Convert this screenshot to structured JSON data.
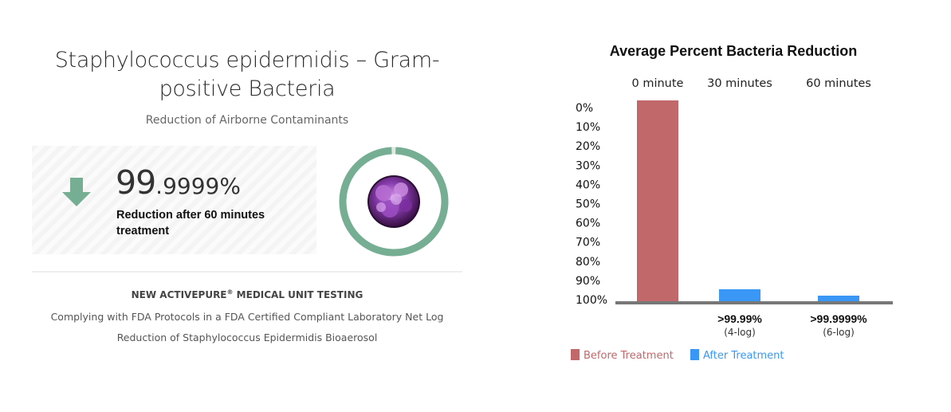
{
  "panel": {
    "title": "Staphylococcus epidermidis – Gram-positive Bacteria",
    "subtitle": "Reduction of Airborne Contaminants",
    "stat_main": "99",
    "stat_decimal": ".9999%",
    "stat_caption": "Reduction after 60 minutes treatment",
    "testing_title": "NEW ACTIVEPURE",
    "testing_title_sup": "®",
    "testing_title_suffix": " MEDICAL UNIT TESTING",
    "testing_desc": "Complying with FDA Protocols in a FDA Certified Compliant Laboratory Net Log Reduction of Staphylococcus Epidermidis Bioaerosol",
    "ring_fraction": 0.999999,
    "colors": {
      "accent": "#76ae94",
      "ring_track": "#e6e6e6"
    },
    "icons": {
      "arrow": "arrow-down-icon",
      "bacteria": "bacteria-image"
    }
  },
  "chart_data": {
    "type": "bar",
    "title": "Average Percent Bacteria Reduction",
    "categories": [
      "0 minute",
      "30 minutes",
      "60 minutes"
    ],
    "y_tick_labels": [
      "0%",
      "10%",
      "20%",
      "30%",
      "40%",
      "50%",
      "60%",
      "70%",
      "80%",
      "90%",
      "100%"
    ],
    "ylim": [
      0,
      100
    ],
    "y_inverted": true,
    "series": [
      {
        "name": "Before Treatment",
        "color": "#c0686a",
        "values": [
          0,
          null,
          null
        ]
      },
      {
        "name": "After Treatment",
        "color": "#3a97f5",
        "values": [
          null,
          99.99,
          99.9999
        ]
      }
    ],
    "bar_labels": [
      {
        "category": "30 minutes",
        "main": ">99.99%",
        "sub": "(4-log)"
      },
      {
        "category": "60 minutes",
        "main": ">99.9999%",
        "sub": "(6-log)"
      }
    ],
    "legend_position": "bottom-left",
    "grid": false
  }
}
